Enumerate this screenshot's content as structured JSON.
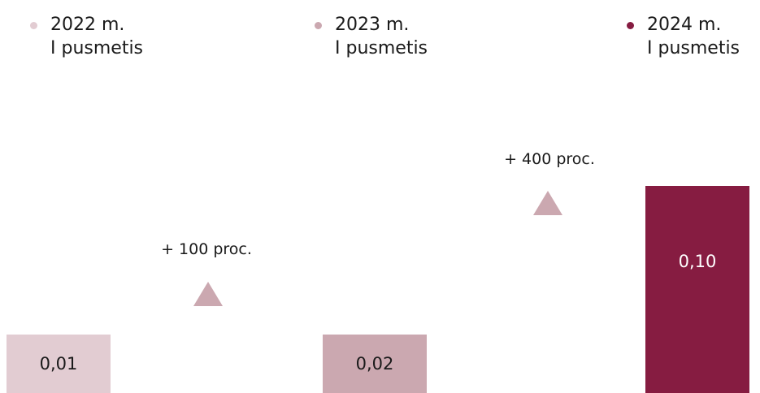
{
  "chart_data": {
    "type": "bar",
    "categories": [
      "2022 m.\nI pusmetis",
      "2023 m.\nI pusmetis",
      "2024 m.\nI pusmetis"
    ],
    "values": [
      0.01,
      0.02,
      0.1
    ],
    "value_labels": [
      "0,01",
      "0,02",
      "0,10"
    ],
    "colors": [
      "#e2ccd2",
      "#cba8b0",
      "#861c41"
    ],
    "legend": [
      {
        "line1": "2022 m.",
        "line2": "I pusmetis",
        "color": "#e2ccd2"
      },
      {
        "line1": "2023 m.",
        "line2": "I pusmetis",
        "color": "#cba8b0"
      },
      {
        "line1": "2024 m.",
        "line2": "I pusmetis",
        "color": "#861c41"
      }
    ],
    "changes": [
      {
        "label": "+ 100 proc.",
        "direction": "up",
        "color": "#cba8b0"
      },
      {
        "label": "+ 400 proc.",
        "direction": "up",
        "color": "#cba8b0"
      }
    ],
    "legend_position": "top",
    "grid": false
  }
}
